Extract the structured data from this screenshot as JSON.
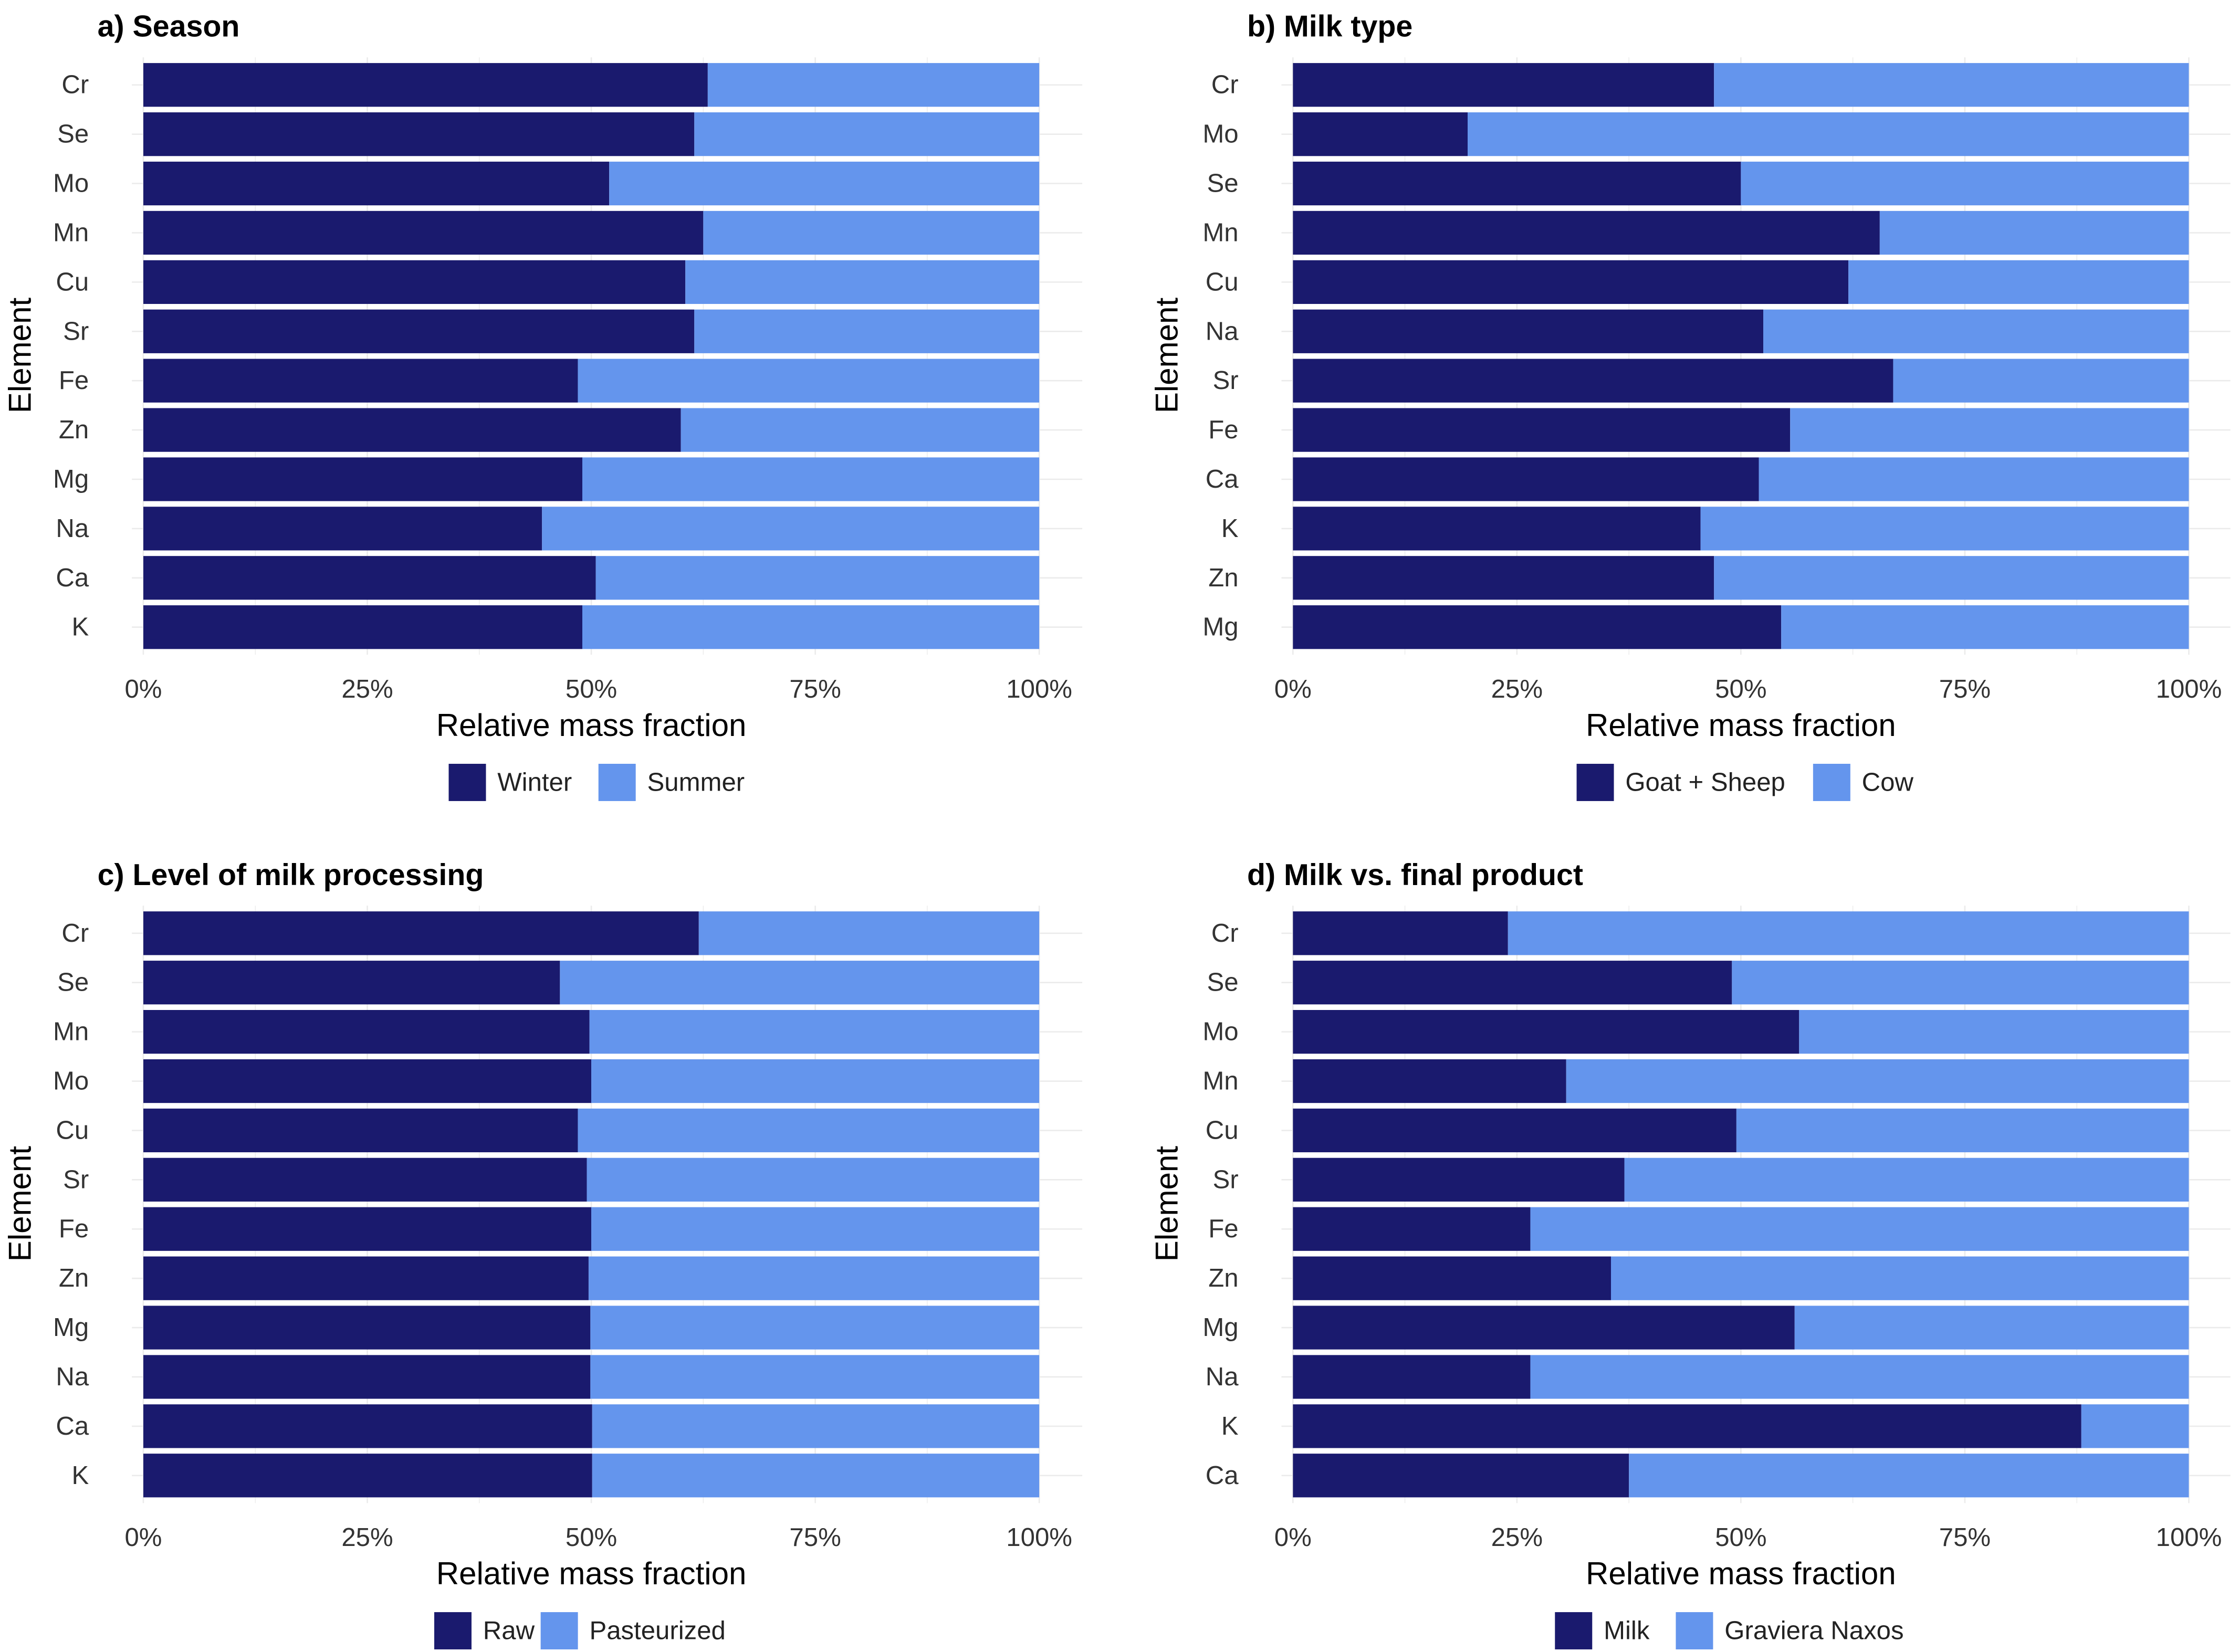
{
  "colors": {
    "series_1": "#1a1a6e",
    "series_2": "#6495ed",
    "grid": "#ebebeb",
    "background": "#ffffff"
  },
  "chart_data": [
    {
      "type": "bar",
      "orientation": "horizontal",
      "stacked": "percent",
      "title": "a) Season",
      "xlabel": "Relative mass fraction",
      "ylabel": "Element",
      "xlim": [
        0,
        100
      ],
      "x_ticks": [
        "0%",
        "25%",
        "50%",
        "75%",
        "100%"
      ],
      "categories": [
        "Cr",
        "Se",
        "Mo",
        "Mn",
        "Cu",
        "Sr",
        "Fe",
        "Zn",
        "Mg",
        "Na",
        "Ca",
        "K"
      ],
      "series": [
        {
          "name": "Winter",
          "values": [
            63,
            61.5,
            52,
            62.5,
            60.5,
            61.5,
            48.5,
            60,
            49,
            44.5,
            50.5,
            49
          ]
        },
        {
          "name": "Summer",
          "values": [
            37,
            38.5,
            48,
            37.5,
            39.5,
            38.5,
            51.5,
            40,
            51,
            55.5,
            49.5,
            51
          ]
        }
      ],
      "legend_position": "bottom"
    },
    {
      "type": "bar",
      "orientation": "horizontal",
      "stacked": "percent",
      "title": "b) Milk type",
      "xlabel": "Relative mass fraction",
      "ylabel": "Element",
      "xlim": [
        0,
        100
      ],
      "x_ticks": [
        "0%",
        "25%",
        "50%",
        "75%",
        "100%"
      ],
      "categories": [
        "Cr",
        "Mo",
        "Se",
        "Mn",
        "Cu",
        "Na",
        "Sr",
        "Fe",
        "Ca",
        "K",
        "Zn",
        "Mg"
      ],
      "series": [
        {
          "name": "Goat + Sheep",
          "values": [
            47,
            19.5,
            50,
            65.5,
            62,
            52.5,
            67,
            55.5,
            52,
            45.5,
            47,
            54.5
          ]
        },
        {
          "name": "Cow",
          "values": [
            53,
            80.5,
            50,
            34.5,
            38,
            47.5,
            33,
            44.5,
            48,
            54.5,
            53,
            45.5
          ]
        }
      ],
      "legend_position": "bottom"
    },
    {
      "type": "bar",
      "orientation": "horizontal",
      "stacked": "percent",
      "title": "c) Level of milk processing",
      "xlabel": "Relative mass fraction",
      "ylabel": "Element",
      "xlim": [
        0,
        100
      ],
      "x_ticks": [
        "0%",
        "25%",
        "50%",
        "75%",
        "100%"
      ],
      "categories": [
        "Cr",
        "Se",
        "Mn",
        "Mo",
        "Cu",
        "Sr",
        "Fe",
        "Zn",
        "Mg",
        "Na",
        "Ca",
        "K"
      ],
      "series": [
        {
          "name": "Raw",
          "values": [
            62,
            46.5,
            49.8,
            50,
            48.5,
            49.5,
            50,
            49.7,
            49.9,
            49.9,
            50.1,
            50.1
          ]
        },
        {
          "name": "Pasteurized",
          "values": [
            38,
            53.5,
            50.2,
            50,
            51.5,
            50.5,
            50,
            50.3,
            50.1,
            50.1,
            49.9,
            49.9
          ]
        }
      ],
      "legend_position": "bottom"
    },
    {
      "type": "bar",
      "orientation": "horizontal",
      "stacked": "percent",
      "title": "d) Milk vs. final product",
      "xlabel": "Relative mass fraction",
      "ylabel": "Element",
      "xlim": [
        0,
        100
      ],
      "x_ticks": [
        "0%",
        "25%",
        "50%",
        "75%",
        "100%"
      ],
      "categories": [
        "Cr",
        "Se",
        "Mo",
        "Mn",
        "Cu",
        "Sr",
        "Fe",
        "Zn",
        "Mg",
        "Na",
        "K",
        "Ca"
      ],
      "series": [
        {
          "name": "Milk",
          "values": [
            24,
            49,
            56.5,
            30.5,
            49.5,
            37,
            26.5,
            35.5,
            56,
            26.5,
            88,
            37.5
          ]
        },
        {
          "name": "Graviera Naxos",
          "values": [
            76,
            51,
            43.5,
            69.5,
            50.5,
            63,
            73.5,
            64.5,
            44,
            73.5,
            12,
            62.5
          ]
        }
      ],
      "legend_position": "bottom"
    }
  ]
}
